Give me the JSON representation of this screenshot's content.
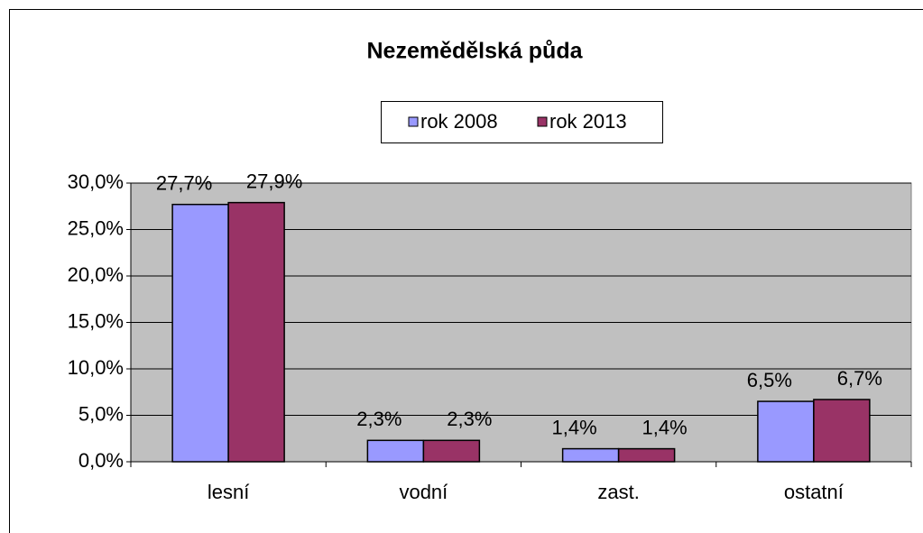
{
  "chart_data": {
    "type": "bar",
    "title": "Nezemědělská půda",
    "categories": [
      "lesní",
      "vodní",
      "zast.",
      "ostatní"
    ],
    "series": [
      {
        "name": "rok 2008",
        "color": "#9999ff",
        "values": [
          27.7,
          2.3,
          1.4,
          6.5
        ],
        "value_labels": [
          "27,7%",
          "2,3%",
          "1,4%",
          "6,5%"
        ]
      },
      {
        "name": "rok 2013",
        "color": "#993366",
        "values": [
          27.9,
          2.3,
          1.4,
          6.7
        ],
        "value_labels": [
          "27,9%",
          "2,3%",
          "1,4%",
          "6,7%"
        ]
      }
    ],
    "ylim": [
      0,
      30
    ],
    "yticks": [
      {
        "value": 0,
        "label": "0,0%"
      },
      {
        "value": 5,
        "label": "5,0%"
      },
      {
        "value": 10,
        "label": "10,0%"
      },
      {
        "value": 15,
        "label": "15,0%"
      },
      {
        "value": 20,
        "label": "20,0%"
      },
      {
        "value": 25,
        "label": "25,0%"
      },
      {
        "value": 30,
        "label": "30,0%"
      }
    ],
    "grid": true,
    "legend": "top"
  }
}
